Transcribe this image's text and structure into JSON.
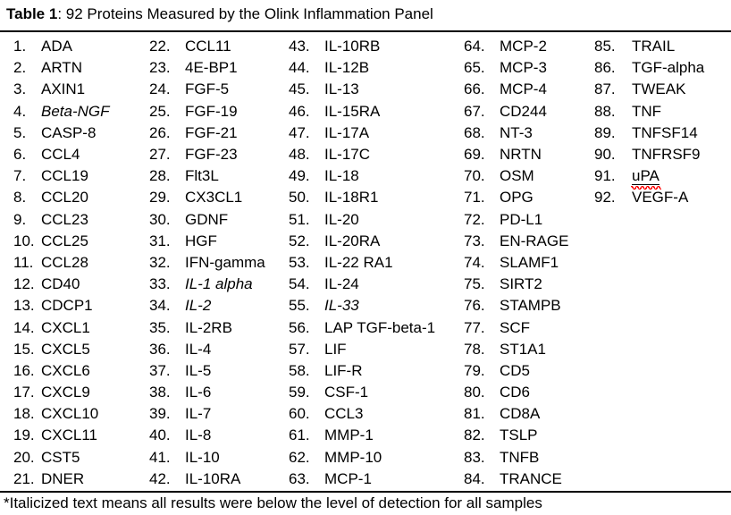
{
  "title": {
    "label": "Table 1",
    "rest": ": 92 Proteins Measured by the Olink Inflammation Panel"
  },
  "footnote": "*Italicized text means all results were below the level of detection for all samples",
  "colors": {
    "text": "#000000",
    "background": "#ffffff",
    "rule": "#000000",
    "spellcheck_squiggle": "#ff0000"
  },
  "table": {
    "columns": [
      {
        "entries": [
          {
            "n": "1.",
            "name": "ADA"
          },
          {
            "n": "2.",
            "name": "ARTN"
          },
          {
            "n": "3.",
            "name": "AXIN1"
          },
          {
            "n": "4.",
            "name": "Beta-NGF",
            "style": "italic"
          },
          {
            "n": "5.",
            "name": "CASP-8"
          },
          {
            "n": "6.",
            "name": "CCL4"
          },
          {
            "n": "7.",
            "name": "CCL19"
          },
          {
            "n": "8.",
            "name": "CCL20"
          },
          {
            "n": "9.",
            "name": "CCL23"
          },
          {
            "n": "10.",
            "name": "CCL25"
          },
          {
            "n": "11.",
            "name": "CCL28"
          },
          {
            "n": "12.",
            "name": "CD40"
          },
          {
            "n": "13.",
            "name": "CDCP1"
          },
          {
            "n": "14.",
            "name": "CXCL1"
          },
          {
            "n": "15.",
            "name": "CXCL5"
          },
          {
            "n": "16.",
            "name": "CXCL6"
          },
          {
            "n": "17.",
            "name": "CXCL9"
          },
          {
            "n": "18.",
            "name": "CXCL10"
          },
          {
            "n": "19.",
            "name": "CXCL11"
          },
          {
            "n": "20.",
            "name": "CST5"
          },
          {
            "n": "21.",
            "name": "DNER"
          }
        ]
      },
      {
        "entries": [
          {
            "n": "22.",
            "name": "CCL11"
          },
          {
            "n": "23.",
            "name": "4E-BP1"
          },
          {
            "n": "24.",
            "name": "FGF-5"
          },
          {
            "n": "25.",
            "name": "FGF-19"
          },
          {
            "n": "26.",
            "name": "FGF-21"
          },
          {
            "n": "27.",
            "name": "FGF-23"
          },
          {
            "n": "28.",
            "name": "Flt3L"
          },
          {
            "n": "29.",
            "name": "CX3CL1"
          },
          {
            "n": "30.",
            "name": "GDNF"
          },
          {
            "n": "31.",
            "name": "HGF"
          },
          {
            "n": "32.",
            "name": "IFN-gamma"
          },
          {
            "n": "33.",
            "name": "IL-1 alpha",
            "style": "italic"
          },
          {
            "n": "34.",
            "name": "IL-2",
            "style": "italic"
          },
          {
            "n": "35.",
            "name": "IL-2RB"
          },
          {
            "n": "36.",
            "name": "IL-4"
          },
          {
            "n": "37.",
            "name": "IL-5"
          },
          {
            "n": "38.",
            "name": "IL-6"
          },
          {
            "n": "39.",
            "name": "IL-7"
          },
          {
            "n": "40.",
            "name": "IL-8"
          },
          {
            "n": "41.",
            "name": "IL-10"
          },
          {
            "n": "42.",
            "name": "IL-10RA"
          }
        ]
      },
      {
        "entries": [
          {
            "n": "43.",
            "name": "IL-10RB"
          },
          {
            "n": "44.",
            "name": "IL-12B"
          },
          {
            "n": "45.",
            "name": "IL-13"
          },
          {
            "n": "46.",
            "name": "IL-15RA"
          },
          {
            "n": "47.",
            "name": "IL-17A"
          },
          {
            "n": "48.",
            "name": "IL-17C"
          },
          {
            "n": "49.",
            "name": "IL-18"
          },
          {
            "n": "50.",
            "name": "IL-18R1"
          },
          {
            "n": "51.",
            "name": "IL-20"
          },
          {
            "n": "52.",
            "name": "IL-20RA"
          },
          {
            "n": "53.",
            "name": "IL-22 RA1"
          },
          {
            "n": "54.",
            "name": "IL-24"
          },
          {
            "n": "55.",
            "name": "IL-33",
            "style": "italic"
          },
          {
            "n": "56.",
            "name": "LAP TGF-beta-1"
          },
          {
            "n": "57.",
            "name": "LIF"
          },
          {
            "n": "58.",
            "name": "LIF-R"
          },
          {
            "n": "59.",
            "name": "CSF-1"
          },
          {
            "n": "60.",
            "name": "CCL3"
          },
          {
            "n": "61.",
            "name": "MMP-1"
          },
          {
            "n": "62.",
            "name": "MMP-10"
          },
          {
            "n": "63.",
            "name": "MCP-1"
          }
        ]
      },
      {
        "entries": [
          {
            "n": "64.",
            "name": "MCP-2"
          },
          {
            "n": "65.",
            "name": "MCP-3"
          },
          {
            "n": "66.",
            "name": "MCP-4"
          },
          {
            "n": "67.",
            "name": "CD244"
          },
          {
            "n": "68.",
            "name": "NT-3"
          },
          {
            "n": "69.",
            "name": "NRTN"
          },
          {
            "n": "70.",
            "name": "OSM"
          },
          {
            "n": "71.",
            "name": "OPG"
          },
          {
            "n": "72.",
            "name": "PD-L1"
          },
          {
            "n": "73.",
            "name": "EN-RAGE"
          },
          {
            "n": "74.",
            "name": "SLAMF1"
          },
          {
            "n": "75.",
            "name": "SIRT2"
          },
          {
            "n": "76.",
            "name": "STAMPB"
          },
          {
            "n": "77.",
            "name": "SCF"
          },
          {
            "n": "78.",
            "name": "ST1A1"
          },
          {
            "n": "79.",
            "name": "CD5"
          },
          {
            "n": "80.",
            "name": "CD6"
          },
          {
            "n": "81.",
            "name": "CD8A"
          },
          {
            "n": "82.",
            "name": "TSLP"
          },
          {
            "n": "83.",
            "name": "TNFB"
          },
          {
            "n": "84.",
            "name": "TRANCE"
          }
        ]
      },
      {
        "entries": [
          {
            "n": "85.",
            "name": "TRAIL"
          },
          {
            "n": "86.",
            "name": "TGF-alpha"
          },
          {
            "n": "87.",
            "name": "TWEAK"
          },
          {
            "n": "88.",
            "name": "TNF"
          },
          {
            "n": "89.",
            "name": "TNFSF14"
          },
          {
            "n": "90.",
            "name": "TNFRSF9"
          },
          {
            "n": "91.",
            "name": "uPA",
            "style": "misspelled"
          },
          {
            "n": "92.",
            "name": "VEGF-A"
          }
        ]
      }
    ]
  }
}
